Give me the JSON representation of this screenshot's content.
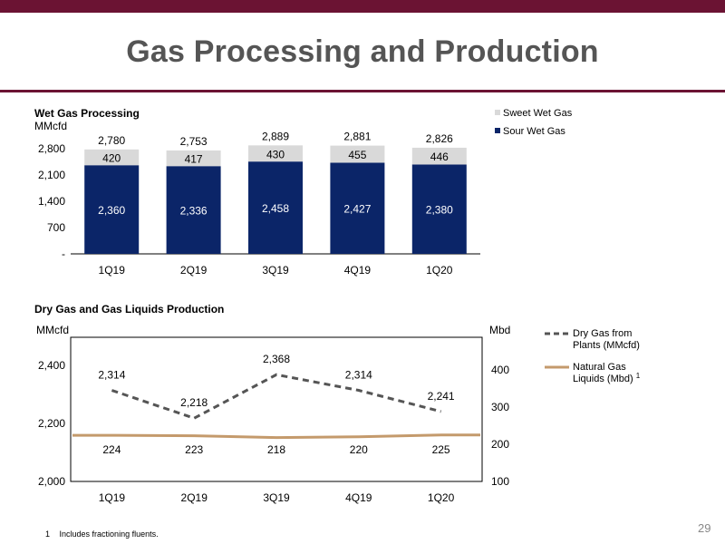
{
  "slide": {
    "title": "Gas Processing and Production",
    "page_number": "29",
    "footnote_marker": "1",
    "footnote_text": "Includes fractioning fluents.",
    "colors": {
      "accent": "#6b1333",
      "title": "#555555"
    }
  },
  "chart_data": [
    {
      "type": "bar",
      "stacked": true,
      "title": "Wet Gas Processing",
      "ylabel": "MMcfd",
      "categories": [
        "1Q19",
        "2Q19",
        "3Q19",
        "4Q19",
        "1Q20"
      ],
      "yticks": [
        "-",
        "700",
        "1,400",
        "2,100",
        "2,800"
      ],
      "ylim": [
        0,
        2800
      ],
      "series": [
        {
          "name": "Sour Wet Gas",
          "color": "#0b2568",
          "values": [
            2360,
            2336,
            2458,
            2427,
            2380
          ],
          "labels": [
            "2,360",
            "2,336",
            "2,458",
            "2,427",
            "2,380"
          ]
        },
        {
          "name": "Sweet Wet Gas",
          "color": "#d9d9d9",
          "values": [
            420,
            417,
            430,
            455,
            446
          ],
          "labels": [
            "420",
            "417",
            "430",
            "455",
            "446"
          ]
        }
      ],
      "totals": [
        2780,
        2753,
        2889,
        2881,
        2826
      ],
      "total_labels": [
        "2,780",
        "2,753",
        "2,889",
        "2,881",
        "2,826"
      ],
      "legend": [
        "Sweet Wet Gas",
        "Sour Wet Gas"
      ],
      "legend_position": "top-right"
    },
    {
      "type": "line",
      "title": "Dry Gas and Gas Liquids Production",
      "ylabel_left": "MMcfd",
      "ylabel_right": "Mbd",
      "categories": [
        "1Q19",
        "2Q19",
        "3Q19",
        "4Q19",
        "1Q20"
      ],
      "y_left_ticks": [
        "2,000",
        "2,200",
        "2,400"
      ],
      "y_left_lim": [
        2000,
        2400
      ],
      "y_right_ticks": [
        "100",
        "200",
        "300",
        "400"
      ],
      "y_right_lim": [
        100,
        400
      ],
      "series": [
        {
          "name": "Dry Gas from Plants (MMcfd)",
          "axis": "left",
          "style": "dashed",
          "color": "#555555",
          "values": [
            2314,
            2218,
            2368,
            2314,
            2241
          ],
          "labels": [
            "2,314",
            "2,218",
            "2,368",
            "2,314",
            "2,241"
          ]
        },
        {
          "name": "Natural Gas Liquids (Mbd)",
          "name_superscript": "1",
          "axis": "right",
          "style": "solid",
          "color": "#c49a6c",
          "values": [
            224,
            223,
            218,
            220,
            225
          ],
          "labels": [
            "224",
            "223",
            "218",
            "220",
            "225"
          ]
        }
      ],
      "legend_position": "right"
    }
  ]
}
